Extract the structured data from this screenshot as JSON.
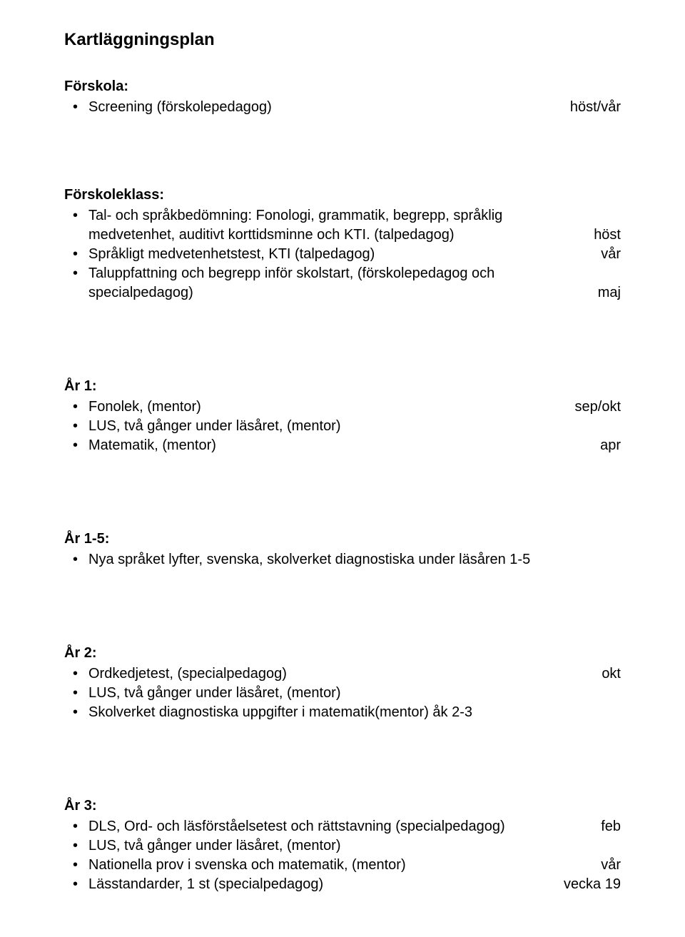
{
  "title": "Kartläggningsplan",
  "colors": {
    "text": "#000000",
    "background": "#ffffff"
  },
  "typography": {
    "font_family": "Comic Sans MS",
    "body_size_pt": 15,
    "title_size_pt": 18
  },
  "forskola": {
    "heading": "Förskola:",
    "items": [
      {
        "text": "Screening (förskolepedagog)",
        "timing": "höst/vår"
      }
    ]
  },
  "forskoleklass": {
    "heading": "Förskoleklass:",
    "items": [
      {
        "text": "Tal- och språkbedömning: Fonologi, grammatik, begrepp, språklig medvetenhet, auditivt korttidsminne och KTI. (talpedagog)",
        "timing": "höst"
      },
      {
        "text": "Språkligt medvetenhetstest, KTI  (talpedagog)",
        "timing": "vår"
      },
      {
        "text": "Taluppfattning och begrepp inför skolstart, (förskolepedagog och specialpedagog)",
        "timing": "maj"
      }
    ]
  },
  "ar1": {
    "heading": "År 1:",
    "items": [
      {
        "text": "Fonolek, (mentor)",
        "timing": "sep/okt"
      },
      {
        "text": "LUS, två gånger under läsåret, (mentor)",
        "timing": ""
      },
      {
        "text": "Matematik, (mentor)",
        "timing": "apr"
      }
    ]
  },
  "ar1_5": {
    "heading": "År 1-5:",
    "items": [
      {
        "text": "Nya språket lyfter, svenska, skolverket diagnostiska under läsåren 1-5",
        "timing": ""
      }
    ]
  },
  "ar2": {
    "heading": "År 2:",
    "items": [
      {
        "text": "Ordkedjetest, (specialpedagog)",
        "timing": "okt"
      },
      {
        "text": "LUS, två gånger under läsåret, (mentor)",
        "timing": ""
      },
      {
        "text": "Skolverket diagnostiska uppgifter i matematik(mentor)  åk 2-3",
        "timing": ""
      }
    ]
  },
  "ar3": {
    "heading": "År 3:",
    "items": [
      {
        "text": "DLS, Ord- och läsförståelsetest och rättstavning (specialpedagog)",
        "timing": "feb"
      },
      {
        "text": "LUS, två gånger under läsåret, (mentor)",
        "timing": ""
      },
      {
        "text": "Nationella prov i svenska och matematik, (mentor)",
        "timing": "vår"
      },
      {
        "text": "Lässtandarder, 1 st (specialpedagog)",
        "timing": "vecka 19"
      }
    ]
  }
}
